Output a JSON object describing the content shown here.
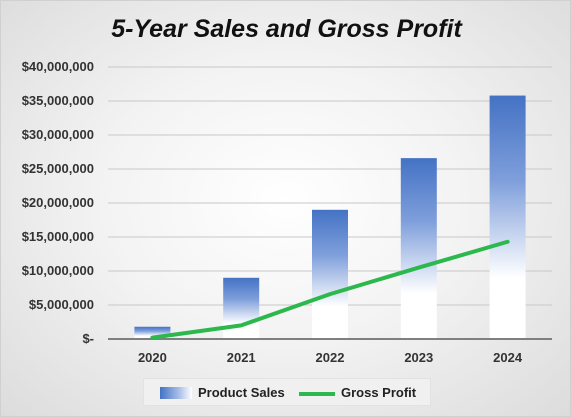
{
  "title": "5-Year Sales and Gross Profit",
  "chart_data": {
    "type": "bar",
    "title": "5-Year Sales and Gross Profit",
    "categories": [
      "2020",
      "2021",
      "2022",
      "2023",
      "2024"
    ],
    "series": [
      {
        "name": "Product Sales",
        "type": "bar",
        "values": [
          1800000,
          9000000,
          19000000,
          26600000,
          35800000
        ],
        "color": "#4472c4"
      },
      {
        "name": "Gross Profit",
        "type": "line",
        "values": [
          200000,
          2000000,
          6600000,
          10500000,
          14300000
        ],
        "color": "#2db84e"
      }
    ],
    "yticks": [
      {
        "value": 0,
        "label": "$-"
      },
      {
        "value": 5000000,
        "label": "$5,000,000"
      },
      {
        "value": 10000000,
        "label": "$10,000,000"
      },
      {
        "value": 15000000,
        "label": "$15,000,000"
      },
      {
        "value": 20000000,
        "label": "$20,000,000"
      },
      {
        "value": 25000000,
        "label": "$25,000,000"
      },
      {
        "value": 30000000,
        "label": "$30,000,000"
      },
      {
        "value": 35000000,
        "label": "$35,000,000"
      },
      {
        "value": 40000000,
        "label": "$40,000,000"
      }
    ],
    "ylim": [
      0,
      40000000
    ],
    "xlabel": "",
    "ylabel": "",
    "grid": true,
    "legend_position": "bottom"
  }
}
